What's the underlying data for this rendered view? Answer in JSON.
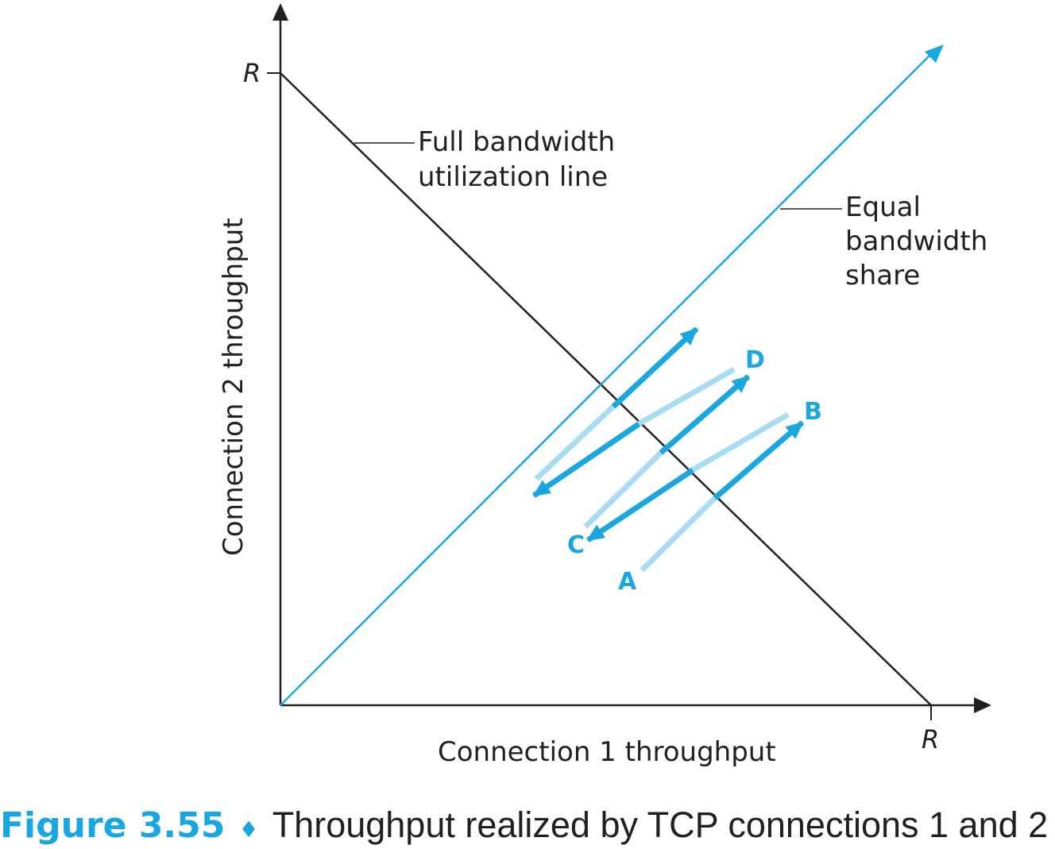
{
  "axes": {
    "x_label": "Connection 1 throughput",
    "y_label": "Connection 2 throughput",
    "x_max_label": "R",
    "y_max_label": "R"
  },
  "lines": {
    "full_bandwidth_label": [
      "Full bandwidth",
      "utilization line"
    ],
    "equal_share_label": [
      "Equal",
      "bandwidth",
      "share"
    ]
  },
  "points": {
    "a": "A",
    "b": "B",
    "c": "C",
    "d": "D"
  },
  "caption": {
    "figure": "Figure 3.55",
    "separator": "♦",
    "text": "Throughput realized by TCP connections 1 and 2"
  },
  "colors": {
    "ink": "#231f20",
    "accent": "#1aa7e0",
    "accent_light": "#a8dcf3"
  }
}
